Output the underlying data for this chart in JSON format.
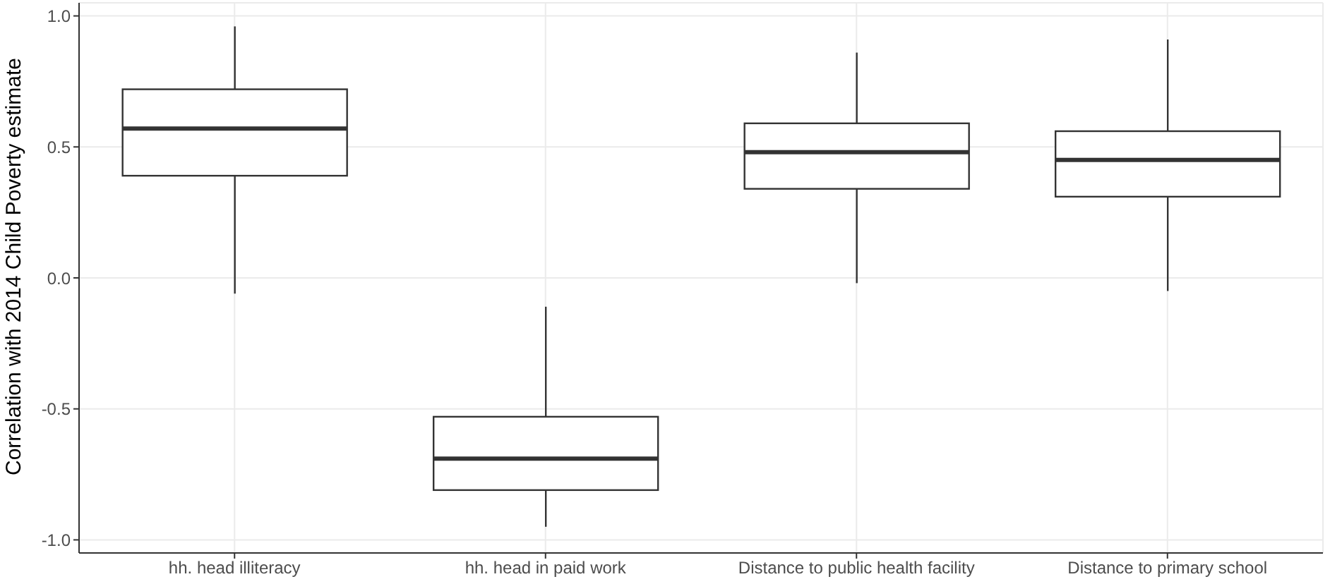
{
  "chart_data": {
    "type": "box",
    "ylabel": "Correlation with 2014 Child Poverty estimate",
    "categories": [
      "hh. head illiteracy",
      "hh. head in paid work",
      "Distance to public health facility",
      "Distance to primary school"
    ],
    "boxes": [
      {
        "low": -0.06,
        "q1": 0.39,
        "median": 0.57,
        "q3": 0.72,
        "high": 0.96
      },
      {
        "low": -0.95,
        "q1": -0.81,
        "median": -0.69,
        "q3": -0.53,
        "high": -0.11
      },
      {
        "low": -0.02,
        "q1": 0.34,
        "median": 0.48,
        "q3": 0.59,
        "high": 0.86
      },
      {
        "low": -0.05,
        "q1": 0.31,
        "median": 0.45,
        "q3": 0.56,
        "high": 0.91
      }
    ],
    "ylim": [
      -1.05,
      1.05
    ],
    "yticks": [
      {
        "value": -1,
        "label": "-1.0"
      },
      {
        "value": -0.5,
        "label": "-0.5"
      },
      {
        "value": 0,
        "label": "0.0"
      },
      {
        "value": 0.5,
        "label": "0.5"
      },
      {
        "value": 1,
        "label": "1.0"
      }
    ],
    "grid": true
  }
}
